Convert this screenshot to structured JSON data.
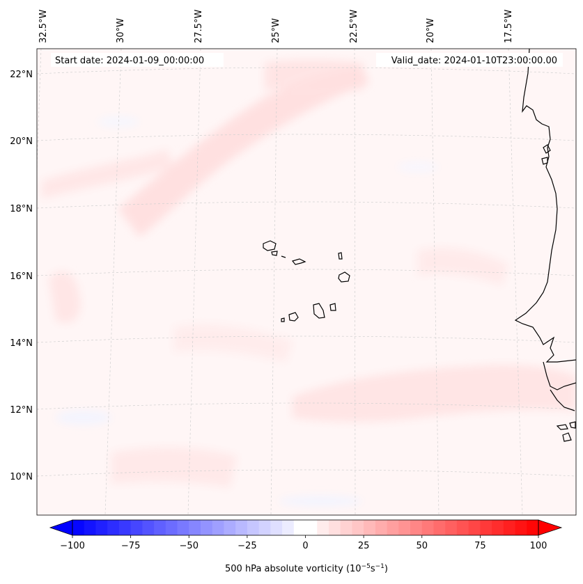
{
  "header": {
    "start_date": "Start date: 2024-01-09_00:00:00",
    "valid_date": "Valid_date: 2024-01-10T23:00:00.00"
  },
  "map": {
    "projection": "conic",
    "lon_labels": [
      "32.5°W",
      "30°W",
      "27.5°W",
      "25°W",
      "22.5°W",
      "20°W",
      "17.5°W"
    ],
    "lat_labels": [
      "22°N",
      "20°N",
      "18°N",
      "16°N",
      "14°N",
      "12°N",
      "10°N"
    ],
    "gridlines": "dashed",
    "field": "500 hPa absolute vorticity",
    "field_colors": {
      "negative": "#0000ff",
      "zero": "#ffffff",
      "positive": "#ff0000"
    }
  },
  "colorbar": {
    "label": "500 hPa absolute vorticity (10",
    "label_exp1": "−5",
    "label_mid": "s",
    "label_exp2": "−1",
    "label_end": ")",
    "ticks": [
      "−100",
      "−75",
      "−50",
      "−25",
      "0",
      "25",
      "50",
      "75",
      "100"
    ],
    "range": [
      -100,
      100
    ],
    "extend": "both"
  }
}
